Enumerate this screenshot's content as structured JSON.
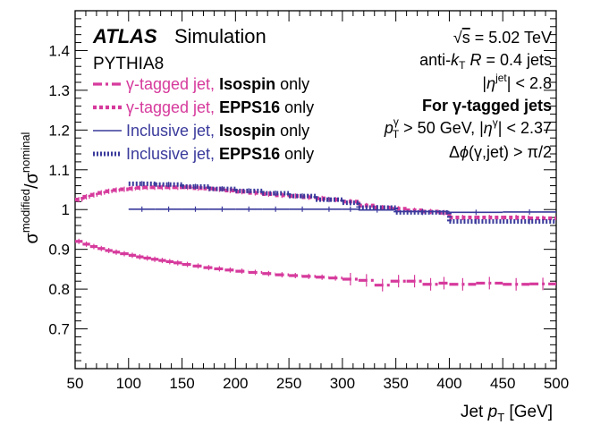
{
  "chart_data": {
    "type": "line",
    "experiment": "ATLAS",
    "label": "Simulation",
    "generator": "PYTHIA8",
    "xlabel_main": "Jet ",
    "xlabel_sym": "p",
    "xlabel_sub": "T",
    "xlabel_unit": " [GeV]",
    "ylabel_sigma1": "σ",
    "ylabel_sup1": "modified",
    "ylabel_slash": "/",
    "ylabel_sigma2": "σ",
    "ylabel_sup2": "nominal",
    "xlim": [
      50,
      500
    ],
    "ylim": [
      0.6,
      1.5
    ],
    "x_ticks": [
      50,
      100,
      150,
      200,
      250,
      300,
      350,
      400,
      450,
      500
    ],
    "y_ticks": [
      0.7,
      0.8,
      0.9,
      1.0,
      1.1,
      1.2,
      1.3,
      1.4
    ],
    "y_tick_labels": [
      "0.7",
      "0.8",
      "0.9",
      "1",
      "1.1",
      "1.2",
      "1.3",
      "1.4"
    ],
    "info": {
      "sqrt_s": "s",
      "energy": " = 5.02 TeV",
      "algo_a": "anti-",
      "algo_k": "k",
      "algo_t": "T",
      "algo_r": " R",
      "algo_rest": " = 0.4 jets",
      "eta_pre": "|",
      "eta_sym": "η",
      "eta_sup": "jet",
      "eta_post": "| < 2.8",
      "for_gamma": "For γ-tagged jets",
      "pt_cut_p": "p",
      "pt_cut_sub": "T",
      "pt_cut_sup": "γ",
      "pt_cut_rest": " > 50 GeV, |",
      "pt_cut_eta": "η",
      "pt_cut_eta_sup": "γ",
      "pt_cut_end": "| < 2.37",
      "dphi_a": "Δ",
      "dphi_b": "ϕ",
      "dphi_c": "(γ,jet) > π/2"
    },
    "series": [
      {
        "name_a": "γ-tagged jet, ",
        "name_b": "Isospin",
        "name_c": " only",
        "color": "#d63a9c",
        "style": "dashdot",
        "x": [
          50,
          57,
          64,
          71,
          78,
          85,
          92,
          100,
          107,
          114,
          121,
          128,
          135,
          142,
          150,
          160,
          170,
          180,
          190,
          200,
          212,
          225,
          237,
          250,
          262,
          275,
          287,
          300,
          315,
          330,
          345,
          360,
          375,
          390,
          400,
          425,
          450,
          475
        ],
        "x_end": [
          57,
          64,
          71,
          78,
          85,
          92,
          100,
          107,
          114,
          121,
          128,
          135,
          142,
          150,
          160,
          170,
          180,
          190,
          200,
          212,
          225,
          237,
          250,
          262,
          275,
          287,
          300,
          315,
          330,
          345,
          360,
          375,
          390,
          400,
          425,
          450,
          475,
          500
        ],
        "values": [
          0.92,
          0.913,
          0.907,
          0.902,
          0.897,
          0.893,
          0.889,
          0.885,
          0.881,
          0.878,
          0.875,
          0.872,
          0.869,
          0.866,
          0.862,
          0.858,
          0.854,
          0.851,
          0.848,
          0.845,
          0.842,
          0.839,
          0.836,
          0.834,
          0.832,
          0.83,
          0.828,
          0.825,
          0.822,
          0.81,
          0.82,
          0.82,
          0.812,
          0.815,
          0.812,
          0.815,
          0.812,
          0.813
        ]
      },
      {
        "name_a": "γ-tagged jet, ",
        "name_b": "EPPS16",
        "name_c": " only",
        "color": "#d63a9c",
        "style": "dotted",
        "x": [
          50,
          57,
          64,
          71,
          78,
          85,
          92,
          100,
          107,
          114,
          121,
          128,
          135,
          142,
          150,
          160,
          170,
          180,
          190,
          200,
          212,
          225,
          237,
          250,
          262,
          275,
          287,
          300,
          315,
          330,
          345,
          360,
          375,
          390,
          400,
          425,
          450,
          475
        ],
        "x_end": [
          57,
          64,
          71,
          78,
          85,
          92,
          100,
          107,
          114,
          121,
          128,
          135,
          142,
          150,
          160,
          170,
          180,
          190,
          200,
          212,
          225,
          237,
          250,
          262,
          275,
          287,
          300,
          315,
          330,
          345,
          360,
          375,
          390,
          400,
          425,
          450,
          475,
          500
        ],
        "values": [
          1.025,
          1.032,
          1.037,
          1.042,
          1.046,
          1.049,
          1.051,
          1.053,
          1.055,
          1.056,
          1.056,
          1.056,
          1.056,
          1.056,
          1.056,
          1.054,
          1.053,
          1.051,
          1.048,
          1.045,
          1.042,
          1.039,
          1.036,
          1.034,
          1.031,
          1.028,
          1.025,
          1.02,
          1.01,
          1.005,
          1.002,
          0.998,
          0.995,
          0.992,
          0.98,
          0.98,
          0.98,
          0.978
        ]
      },
      {
        "name_a": "Inclusive jet, ",
        "name_b": "Isospin",
        "name_c": " only",
        "color": "#3a3a9c",
        "style": "solid",
        "x": [
          100,
          125,
          150,
          175,
          200,
          225,
          250,
          275,
          300,
          315,
          350,
          400,
          450
        ],
        "x_end": [
          125,
          150,
          175,
          200,
          225,
          250,
          275,
          300,
          315,
          350,
          400,
          450,
          500
        ],
        "values": [
          1.001,
          1.001,
          1.001,
          1.001,
          1.001,
          1.001,
          1.001,
          1.001,
          1.001,
          0.999,
          0.995,
          0.993,
          0.994
        ]
      },
      {
        "name_a": "Inclusive jet, ",
        "name_b": "EPPS16",
        "name_c": " only",
        "color": "#3a3a9c",
        "style": "hatch",
        "x": [
          100,
          125,
          150,
          175,
          200,
          225,
          250,
          275,
          300,
          315,
          350,
          400,
          450
        ],
        "x_end": [
          125,
          150,
          175,
          200,
          225,
          250,
          275,
          300,
          315,
          350,
          400,
          450,
          500
        ],
        "values": [
          1.065,
          1.063,
          1.058,
          1.052,
          1.047,
          1.041,
          1.034,
          1.025,
          1.017,
          1.005,
          0.993,
          0.97,
          0.97
        ]
      }
    ]
  }
}
